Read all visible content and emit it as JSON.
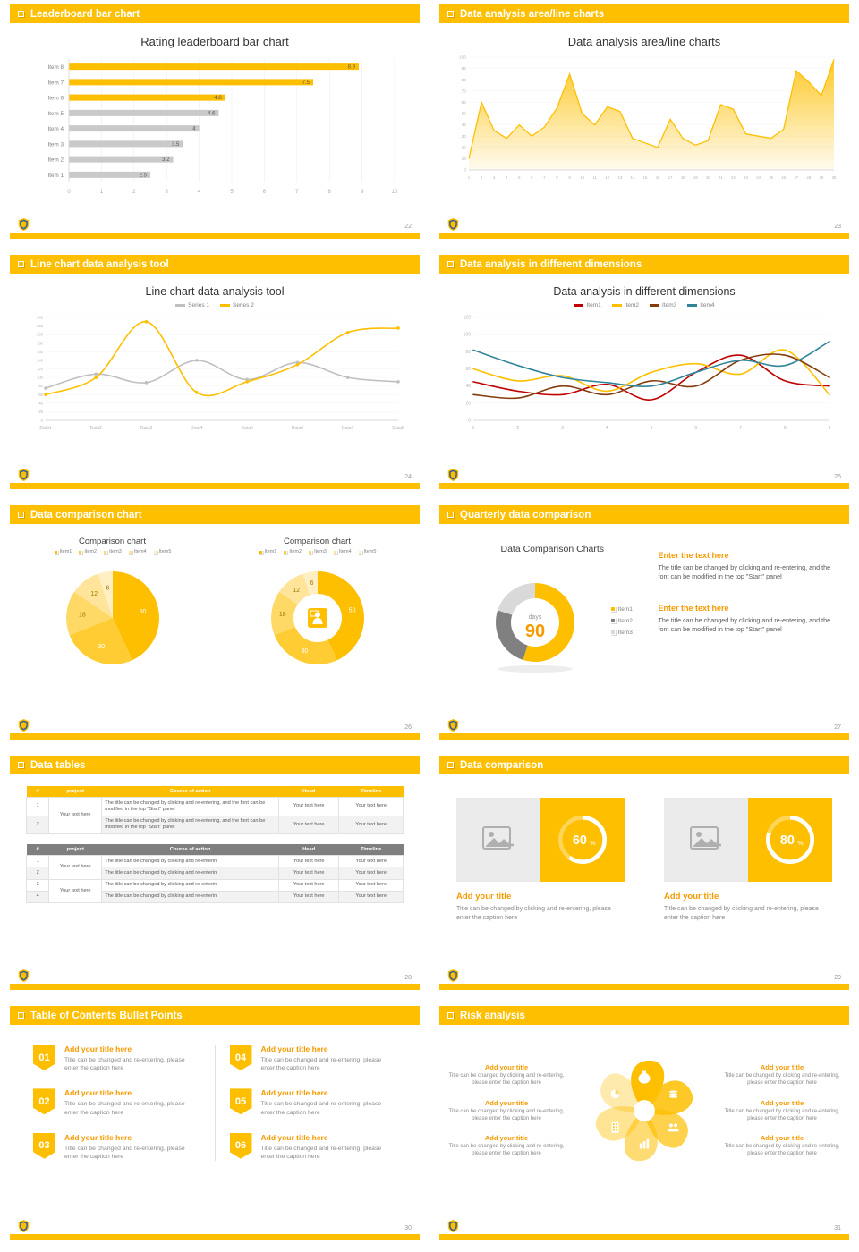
{
  "theme": {
    "yellow": "#FEBF00",
    "orange": "#F59B00",
    "gray_bar": "#C9C9C9",
    "table_gray": "#7F7F7F"
  },
  "slides": [
    {
      "header": "Leaderboard bar chart",
      "page": "22",
      "title": "Rating leaderboard bar chart",
      "chart_data": {
        "type": "bar",
        "orientation": "horizontal",
        "categories": [
          "Item 1",
          "Item 2",
          "Item 3",
          "Item 4",
          "Item 5",
          "Item 6",
          "Item 7",
          "Item 8"
        ],
        "values": [
          2.5,
          3.2,
          3.5,
          4,
          4.6,
          4.8,
          7.5,
          8.9
        ],
        "highlight_count": 3,
        "bar_color": "#C9C9C9",
        "highlight_color": "#FEBF00",
        "xlim": [
          0,
          10
        ],
        "xtick_step": 1
      }
    },
    {
      "header": "Data analysis area/line charts",
      "page": "23",
      "title": "Data analysis area/line charts",
      "chart_data": {
        "type": "area",
        "x_start": 1,
        "values": [
          10,
          60,
          35,
          28,
          40,
          30,
          38,
          55,
          85,
          50,
          40,
          56,
          52,
          28,
          24,
          20,
          45,
          28,
          22,
          26,
          58,
          54,
          32,
          30,
          28,
          36,
          88,
          78,
          66,
          98
        ],
        "ylim": [
          0,
          100
        ],
        "ytick_step": 10,
        "color": "#FEBF00"
      }
    },
    {
      "header": "Line chart data analysis tool",
      "page": "24",
      "title": "Line chart data analysis tool",
      "chart_data": {
        "type": "line",
        "categories": [
          "Data1",
          "Data2",
          "Data3",
          "Data4",
          "Data5",
          "Data6",
          "Data7",
          "Data8"
        ],
        "series": [
          {
            "name": "Series 1",
            "color": "#BFBFBF",
            "values": [
              75,
              108,
              88,
              140,
              95,
              135,
              100,
              90
            ]
          },
          {
            "name": "Series 2",
            "color": "#FEBF00",
            "values": [
              60,
              100,
              230,
              65,
              90,
              130,
              205,
              215
            ]
          }
        ],
        "ylim": [
          0,
          240
        ],
        "ytick_step": 20,
        "markers": true
      }
    },
    {
      "header": "Data analysis in different dimensions",
      "page": "25",
      "title": "Data analysis in different dimensions",
      "chart_data": {
        "type": "line",
        "categories": [
          "1",
          "2",
          "3",
          "4",
          "5",
          "6",
          "7",
          "8",
          "9"
        ],
        "series": [
          {
            "name": "Item1",
            "color": "#C00000",
            "values": [
              45,
              34,
              30,
              42,
              24,
              56,
              76,
              46,
              40
            ]
          },
          {
            "name": "Item2",
            "color": "#FEBF00",
            "values": [
              60,
              46,
              52,
              34,
              56,
              66,
              54,
              82,
              30
            ]
          },
          {
            "name": "Item3",
            "color": "#843C0C",
            "values": [
              30,
              26,
              40,
              30,
              46,
              40,
              70,
              76,
              50
            ]
          },
          {
            "name": "Item4",
            "color": "#31859B",
            "values": [
              82,
              64,
              50,
              44,
              40,
              56,
              70,
              64,
              92
            ]
          }
        ],
        "ylim": [
          0,
          120
        ],
        "ytick_step": 20,
        "markers": false
      }
    },
    {
      "header": "Data comparison chart",
      "page": "26",
      "charts": [
        {
          "title": "Comparison chart",
          "legend": [
            "Item1",
            "Item2",
            "Item3",
            "Item4",
            "Item5"
          ],
          "chart_data": {
            "type": "pie",
            "labels": [
              "Item1",
              "Item2",
              "Item3",
              "Item4",
              "Item5"
            ],
            "values": [
              50,
              30,
              18,
              12,
              6
            ],
            "donut": false
          }
        },
        {
          "title": "Comparison chart",
          "legend": [
            "Item1",
            "Item2",
            "Item3",
            "Item4",
            "Item5"
          ],
          "chart_data": {
            "type": "pie",
            "labels": [
              "Item1",
              "Item2",
              "Item3",
              "Item4",
              "Item5"
            ],
            "values": [
              50,
              30,
              18,
              12,
              6
            ],
            "donut": true
          }
        }
      ]
    },
    {
      "header": "Quarterly data comparison",
      "page": "27",
      "title": "Data Comparison Charts",
      "donut": {
        "center_label": "days",
        "center_value": "90",
        "legend": [
          "Item1",
          "Item2",
          "Item3"
        ],
        "chart_data": {
          "type": "pie",
          "labels": [
            "Item1",
            "Item2",
            "Item3"
          ],
          "values": [
            55,
            25,
            20
          ],
          "colors": [
            "#FEBF00",
            "#808080",
            "#D9D9D9"
          ],
          "donut": true
        }
      },
      "blocks": [
        {
          "title": "Enter the text here",
          "body": "The title can be changed by clicking and re-entering, and the font can be modified in the top \"Start\" panel"
        },
        {
          "title": "Enter the text here",
          "body": "The title can be changed by clicking and re-entering, and the font can be modified in the top \"Start\" panel"
        }
      ]
    },
    {
      "header": "Data tables",
      "page": "28",
      "tables": [
        {
          "header_style": "yellow",
          "columns": [
            "#",
            "project",
            "Course of action",
            "Head",
            "Timeline"
          ],
          "rows": [
            [
              {
                "t": "1"
              },
              {
                "t": "Your text here",
                "rs": 2
              },
              {
                "t": "The title can be changed by clicking and re-entering, and the font can be modified in the top \"Start\" panel",
                "cls": "left"
              },
              {
                "t": "Your text here"
              },
              {
                "t": "Your text here"
              }
            ],
            [
              {
                "t": "2"
              },
              {
                "t": "The title can be changed by clicking and re-entering, and the font can be modified in the top \"Start\" panel",
                "cls": "left"
              },
              {
                "t": "Your text here"
              },
              {
                "t": "Your text here"
              }
            ]
          ]
        },
        {
          "header_style": "gray",
          "columns": [
            "#",
            "project",
            "Course of action",
            "Head",
            "Timeline"
          ],
          "rows": [
            [
              {
                "t": "1"
              },
              {
                "t": "Your text here",
                "rs": 2
              },
              {
                "t": "The title can be changed by clicking and re-enterin",
                "cls": "left"
              },
              {
                "t": "Your text here"
              },
              {
                "t": "Your text here"
              }
            ],
            [
              {
                "t": "2"
              },
              {
                "t": "The title can be changed by clicking and re-enterin",
                "cls": "left"
              },
              {
                "t": "Your text here"
              },
              {
                "t": "Your text here"
              }
            ],
            [
              {
                "t": "3"
              },
              {
                "t": "Your text here",
                "rs": 2
              },
              {
                "t": "The title can be changed by clicking and re-enterin",
                "cls": "left"
              },
              {
                "t": "Your text here"
              },
              {
                "t": "Your text here"
              }
            ],
            [
              {
                "t": "4"
              },
              {
                "t": "The title can be changed by clicking and re-enterin",
                "cls": "left"
              },
              {
                "t": "Your text here"
              },
              {
                "t": "Your text here"
              }
            ]
          ]
        }
      ]
    },
    {
      "header": "Data comparison",
      "page": "29",
      "cards": [
        {
          "percent": 60,
          "title": "Add your title",
          "caption": "Title can be changed by clicking and re-entering, please enter the caption here"
        },
        {
          "percent": 80,
          "title": "Add your title",
          "caption": "Title can be changed by clicking and re-entering, please enter the caption here"
        }
      ]
    },
    {
      "header": "Table of Contents Bullet Points",
      "page": "30",
      "items": [
        {
          "num": "01",
          "title": "Add your title here",
          "caption": "Title can be changed and re-entering, please enter the caption here"
        },
        {
          "num": "02",
          "title": "Add your title here",
          "caption": "Title can be changed and re-entering, please enter the caption here"
        },
        {
          "num": "03",
          "title": "Add your title here",
          "caption": "Title can be changed and re-entering, please enter the caption here"
        },
        {
          "num": "04",
          "title": "Add your title here",
          "caption": "Title can be changed and re-entering, please enter the caption here"
        },
        {
          "num": "05",
          "title": "Add your title here",
          "caption": "Title can be changed and re-entering, please enter the caption here"
        },
        {
          "num": "06",
          "title": "Add your title here",
          "caption": "Title can be changed and re-entering, please enter the caption here"
        }
      ]
    },
    {
      "header": "Risk analysis",
      "page": "31",
      "icons": [
        "money-bag",
        "coins",
        "people",
        "bar-chart",
        "building",
        "pie-chart"
      ],
      "blocks": [
        {
          "title": "Add your title",
          "caption": "Title can be changed by clicking and re-entering, please enter the caption here"
        },
        {
          "title": "Add your title",
          "caption": "Title can be changed by clicking and re-entering, please enter the caption here"
        },
        {
          "title": "Add your title",
          "caption": "Title can be changed by clicking and re-entering, please enter the caption here"
        },
        {
          "title": "Add your title",
          "caption": "Title can be changed by clicking and re-entering, please enter the caption here"
        },
        {
          "title": "Add your title",
          "caption": "Title can be changed by clicking and re-entering, please enter the caption here"
        },
        {
          "title": "Add your title",
          "caption": "Title can be changed by clicking and re-entering, please enter the caption here"
        }
      ]
    }
  ]
}
